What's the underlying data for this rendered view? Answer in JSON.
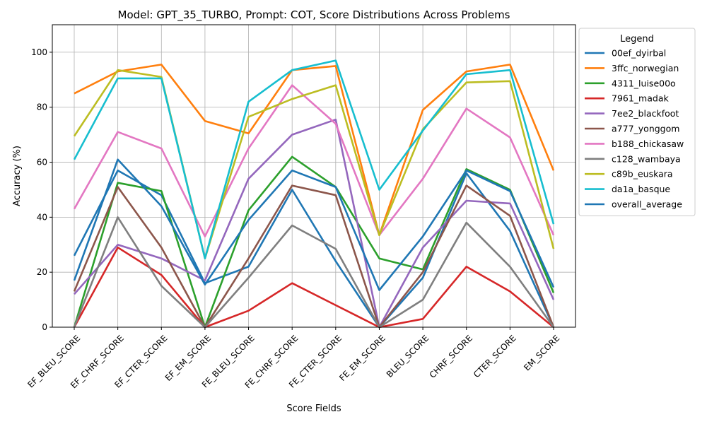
{
  "chart_data": {
    "type": "line",
    "title": "Model: GPT_35_TURBO, Prompt: COT, Score Distributions Across Problems",
    "xlabel": "Score Fields",
    "ylabel": "Accuracy (%)",
    "ylim": [
      0,
      110
    ],
    "yticks": [
      0,
      20,
      40,
      60,
      80,
      100
    ],
    "grid": true,
    "legend_title": "Legend",
    "legend_position": "outside-right",
    "categories": [
      "EF_BLEU_SCORE",
      "EF_CHRF_SCORE",
      "EF_CTER_SCORE",
      "EF_EM_SCORE",
      "FE_BLEU_SCORE",
      "FE_CHRF_SCORE",
      "FE_CTER_SCORE",
      "FE_EM_SCORE",
      "BLEU_SCORE",
      "CHRF_SCORE",
      "CTER_SCORE",
      "EM_SCORE"
    ],
    "series": [
      {
        "name": "00ef_dyirbal",
        "color": "#1f77b4",
        "values": [
          26,
          57,
          48,
          16,
          22,
          50,
          24,
          0,
          18,
          56,
          35,
          0
        ]
      },
      {
        "name": "3ffc_norwegian",
        "color": "#ff7f0e",
        "values": [
          85,
          93,
          95.5,
          75,
          70.5,
          93.5,
          95,
          33.5,
          79,
          93,
          95.5,
          57
        ]
      },
      {
        "name": "4311_luise00o",
        "color": "#2ca02c",
        "values": [
          0,
          52.5,
          49.5,
          0,
          42.5,
          62,
          51,
          25,
          21,
          57.5,
          50,
          12.5
        ]
      },
      {
        "name": "7961_madak",
        "color": "#d62728",
        "values": [
          0,
          29,
          19,
          0,
          6,
          16,
          8,
          0,
          3,
          22,
          13,
          0
        ]
      },
      {
        "name": "7ee2_blackfoot",
        "color": "#9467bd",
        "values": [
          12,
          30,
          25,
          17,
          54,
          70,
          75.5,
          0,
          29,
          46,
          45,
          10
        ]
      },
      {
        "name": "a777_yonggom",
        "color": "#8c564b",
        "values": [
          13,
          51,
          29,
          0,
          25,
          51.5,
          48,
          0,
          20,
          51.5,
          40.5,
          0
        ]
      },
      {
        "name": "b188_chickasaw",
        "color": "#e377c2",
        "values": [
          43,
          71,
          65,
          33,
          65,
          88,
          74,
          33.5,
          54,
          79.5,
          69,
          33.5
        ]
      },
      {
        "name": "c128_wambaya",
        "color": "#7f7f7f",
        "values": [
          0,
          40,
          15,
          0,
          18,
          37,
          28.5,
          0,
          10,
          38,
          22,
          0
        ]
      },
      {
        "name": "c89b_euskara",
        "color": "#bcbd22",
        "values": [
          69.5,
          93.5,
          91,
          25,
          76.5,
          83,
          88,
          33.5,
          72,
          89,
          89.5,
          28.5
        ]
      },
      {
        "name": "da1a_basque",
        "color": "#17becf",
        "values": [
          61,
          90.5,
          90.5,
          25,
          82,
          93.5,
          97,
          50,
          71.5,
          92,
          93.5,
          37.5
        ]
      },
      {
        "name": "overall_average",
        "color": "#1f77b4",
        "values": [
          17,
          61,
          44,
          15.5,
          39,
          57,
          51,
          13.5,
          33,
          57,
          49.5,
          14.5
        ]
      }
    ]
  }
}
